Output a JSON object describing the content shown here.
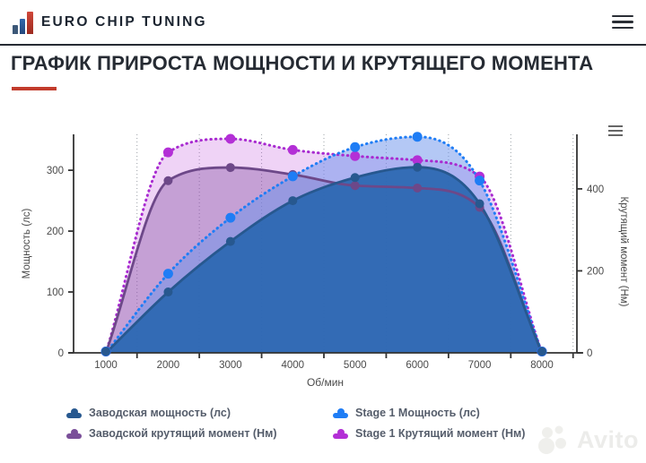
{
  "header": {
    "brand": "EURO CHIP TUNING",
    "icons": {
      "brand_logo": "bar-chart-logo-icon",
      "menu": "hamburger-menu-icon"
    }
  },
  "title": "ГРАФИК ПРИРОСТА МОЩНОСТИ И КРУТЯЩЕГО МОМЕНТА",
  "accent": {
    "title_underline": "#c23b2c",
    "header_border": "#262b33"
  },
  "chart_data": {
    "type": "area",
    "x": [
      1000,
      2000,
      3000,
      4000,
      5000,
      6000,
      7000,
      8000
    ],
    "xlabel": "Об/мин",
    "x_tick_labels": [
      "1000",
      "2000",
      "3000",
      "4000",
      "5000",
      "6000",
      "7000",
      "8000"
    ],
    "grid": "vertical-dotted-between-categories",
    "left_axis": {
      "label": "Мощность (лс)",
      "ticks": [
        0,
        100,
        200,
        300
      ],
      "max": 359
    },
    "right_axis": {
      "label": "Крутящий момент (Нм)",
      "ticks": [
        0,
        200,
        400
      ],
      "max": 533
    },
    "icons": {
      "chart_menu": "chart-menu-icon"
    },
    "series": [
      {
        "id": "stock-power",
        "name": "Заводская мощность (лс)",
        "axis": "left",
        "line": "solid",
        "color": "#27588f",
        "marker_color": "#27588f",
        "fill": "rgba(43,103,178,0.93)",
        "values": [
          0,
          100,
          183,
          250,
          288,
          305,
          245,
          0
        ]
      },
      {
        "id": "stage1-power",
        "name": "Stage 1 Мощность (лс)",
        "axis": "left",
        "line": "dotted",
        "color": "#1f7df5",
        "marker_color": "#1f7df5",
        "fill": "rgba(105,145,235,0.5)",
        "values": [
          0,
          130,
          222,
          290,
          338,
          355,
          283,
          0
        ]
      },
      {
        "id": "stock-torque",
        "name": "Заводской крутящий момент (Нм)",
        "axis": "right",
        "line": "solid",
        "color": "#6d4889",
        "marker_color": "#6d4889",
        "fill": "rgba(128,77,160,0.38)",
        "values": [
          0,
          420,
          452,
          435,
          408,
          402,
          355,
          0
        ]
      },
      {
        "id": "stage1-torque",
        "name": "Stage 1 Крутящий момент (Нм)",
        "axis": "right",
        "line": "dotted",
        "color": "#a82ad0",
        "marker_color": "#b32fd6",
        "fill": "rgba(190,70,218,0.24)",
        "values": [
          0,
          489,
          522,
          495,
          480,
          470,
          430,
          0
        ]
      }
    ],
    "render_order_back_to_front": [
      "stage1-torque",
      "stock-torque",
      "stage1-power",
      "stock-power"
    ],
    "legend_position": "bottom"
  },
  "legend": {
    "items": [
      {
        "label": "Заводская мощность (лс)",
        "color": "#27588f"
      },
      {
        "label": "Stage 1 Мощность (лс)",
        "color": "#1f7df5"
      },
      {
        "label": "Заводской крутящий момент (Нм)",
        "color": "#7a4f99"
      },
      {
        "label": "Stage 1 Крутящий момент (Нм)",
        "color": "#b32fd6"
      }
    ]
  },
  "watermark": {
    "text": "Avito",
    "icon": "avito-circles-icon"
  }
}
